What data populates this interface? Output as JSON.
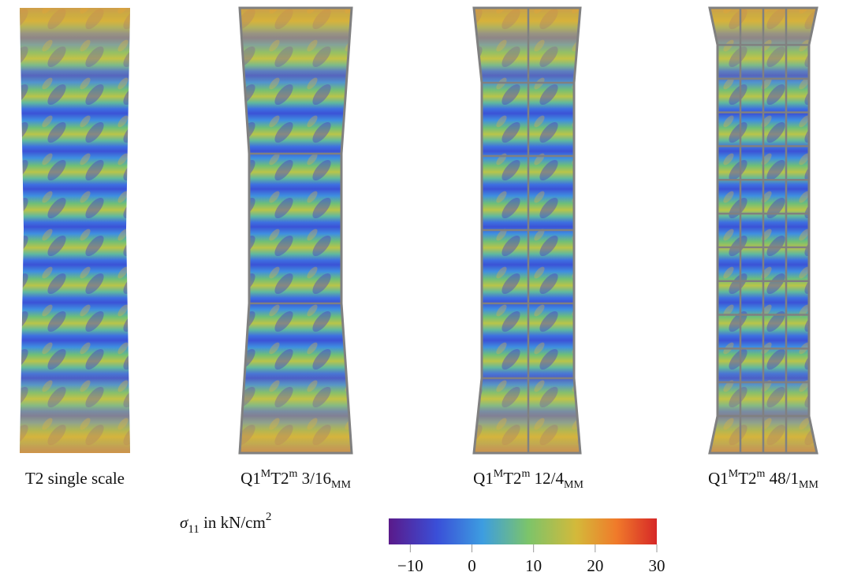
{
  "panels": [
    {
      "caption": [
        "T2 single scale"
      ]
    },
    {
      "caption": [
        "Q1",
        "M",
        "T2",
        "m",
        " 3/16",
        "MM"
      ]
    },
    {
      "caption": [
        "Q1",
        "M",
        "T2",
        "m",
        " 12/4",
        "MM"
      ]
    },
    {
      "caption": [
        "Q1",
        "M",
        "T2",
        "m",
        " 48/1",
        "MM"
      ]
    }
  ],
  "colorbar": {
    "label": [
      "σ",
      "11",
      " in kN/cm",
      "2"
    ],
    "lim": [
      -13.5,
      30
    ],
    "ticks": [
      {
        "value": -10,
        "label": "−10"
      },
      0,
      10,
      20,
      30
    ]
  }
}
